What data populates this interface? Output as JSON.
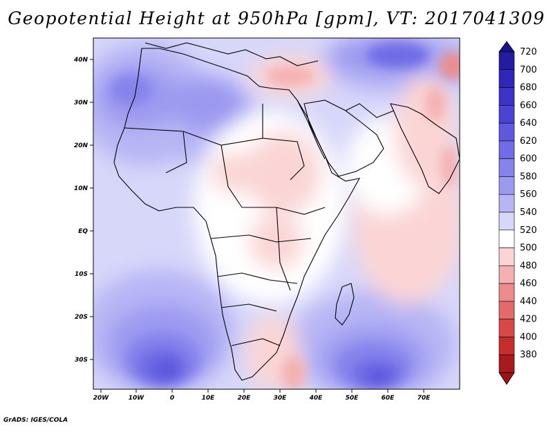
{
  "title": "Geopotential Height at 950hPa [gpm], VT: 2017041309",
  "footer": "GrADS: IGES/COLA",
  "map": {
    "lat_ticks": [
      "40N",
      "30N",
      "20N",
      "10N",
      "EQ",
      "10S",
      "20S",
      "30S"
    ],
    "lon_ticks": [
      "20W",
      "10W",
      "0",
      "10E",
      "20E",
      "30E",
      "40E",
      "50E",
      "60E",
      "70E"
    ],
    "extent": {
      "lon_min": -22,
      "lon_max": 80,
      "lat_min": -37,
      "lat_max": 45
    }
  },
  "colorbar": {
    "labels": [
      "720",
      "700",
      "680",
      "660",
      "640",
      "620",
      "600",
      "580",
      "560",
      "540",
      "520",
      "500",
      "480",
      "460",
      "440",
      "420",
      "400",
      "380"
    ],
    "colors": [
      "#241c9e",
      "#2f27b5",
      "#3b34c6",
      "#4a44d2",
      "#5d58dd",
      "#706ce6",
      "#8683ec",
      "#9c9af0",
      "#b7b6f5",
      "#d7d7fa",
      "#ffffff",
      "#fbd5d5",
      "#f5b1b1",
      "#ec8c8c",
      "#e26a6a",
      "#d74848",
      "#c62d2d",
      "#a91a1a"
    ],
    "top_arrow_color": "#1a1488",
    "bottom_arrow_color": "#9a1414"
  }
}
